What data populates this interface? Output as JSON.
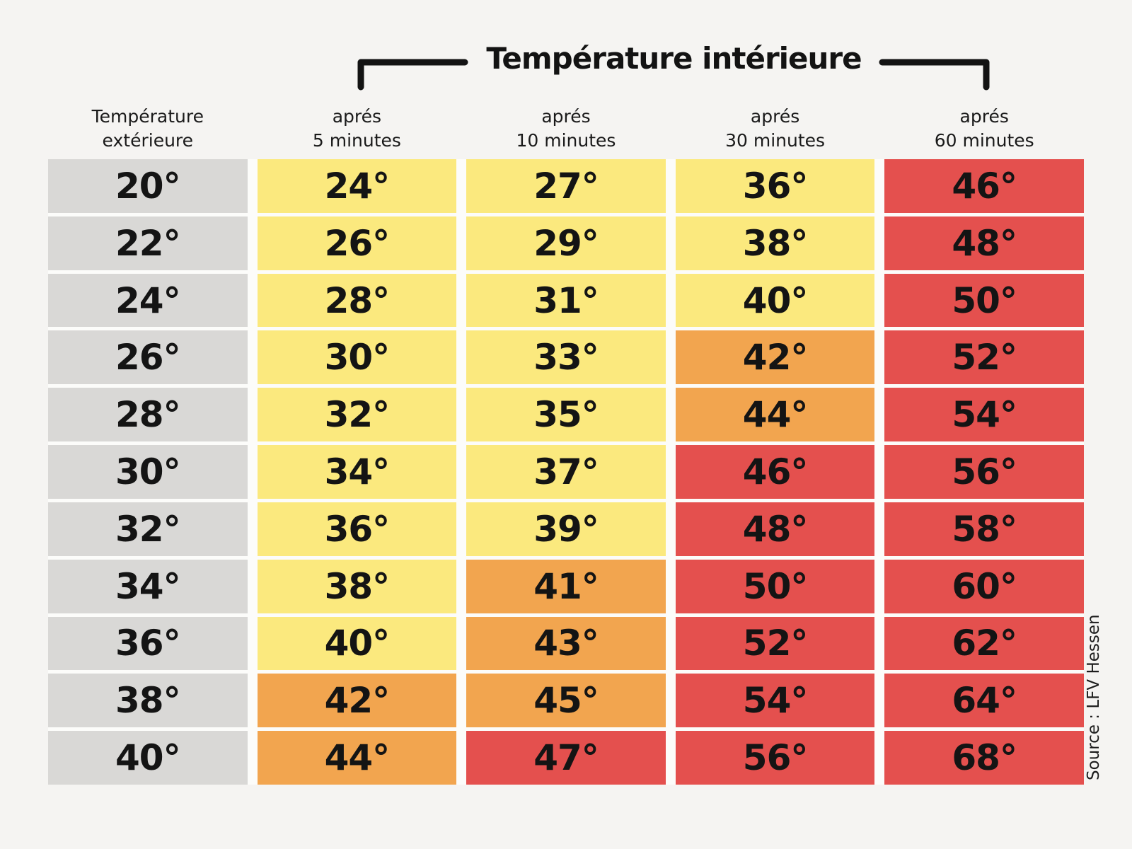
{
  "title": "Température intérieure",
  "source_note": "Source : LFV Hessen",
  "header": {
    "row_label": {
      "line1": "Température",
      "line2": "extérieure"
    },
    "time_labels": [
      {
        "line1": "aprés",
        "line2": "5 minutes"
      },
      {
        "line1": "aprés",
        "line2": "10 minutes"
      },
      {
        "line1": "aprés",
        "line2": "30 minutes"
      },
      {
        "line1": "aprés",
        "line2": "60 minutes"
      }
    ]
  },
  "colors": {
    "background": "#f5f4f2",
    "gap": "#fcfcfa",
    "exterior": "#d9d8d6",
    "warm": "#fbe97e",
    "hot": "#f2a54f",
    "extreme": "#e4504e",
    "text": "#141414",
    "line": "#131313"
  },
  "table": {
    "rows": [
      {
        "exterior": "20°",
        "cells": [
          {
            "value": "24°",
            "level": "warm"
          },
          {
            "value": "27°",
            "level": "warm"
          },
          {
            "value": "36°",
            "level": "warm"
          },
          {
            "value": "46°",
            "level": "extreme"
          }
        ]
      },
      {
        "exterior": "22°",
        "cells": [
          {
            "value": "26°",
            "level": "warm"
          },
          {
            "value": "29°",
            "level": "warm"
          },
          {
            "value": "38°",
            "level": "warm"
          },
          {
            "value": "48°",
            "level": "extreme"
          }
        ]
      },
      {
        "exterior": "24°",
        "cells": [
          {
            "value": "28°",
            "level": "warm"
          },
          {
            "value": "31°",
            "level": "warm"
          },
          {
            "value": "40°",
            "level": "warm"
          },
          {
            "value": "50°",
            "level": "extreme"
          }
        ]
      },
      {
        "exterior": "26°",
        "cells": [
          {
            "value": "30°",
            "level": "warm"
          },
          {
            "value": "33°",
            "level": "warm"
          },
          {
            "value": "42°",
            "level": "hot"
          },
          {
            "value": "52°",
            "level": "extreme"
          }
        ]
      },
      {
        "exterior": "28°",
        "cells": [
          {
            "value": "32°",
            "level": "warm"
          },
          {
            "value": "35°",
            "level": "warm"
          },
          {
            "value": "44°",
            "level": "hot"
          },
          {
            "value": "54°",
            "level": "extreme"
          }
        ]
      },
      {
        "exterior": "30°",
        "cells": [
          {
            "value": "34°",
            "level": "warm"
          },
          {
            "value": "37°",
            "level": "warm"
          },
          {
            "value": "46°",
            "level": "extreme"
          },
          {
            "value": "56°",
            "level": "extreme"
          }
        ]
      },
      {
        "exterior": "32°",
        "cells": [
          {
            "value": "36°",
            "level": "warm"
          },
          {
            "value": "39°",
            "level": "warm"
          },
          {
            "value": "48°",
            "level": "extreme"
          },
          {
            "value": "58°",
            "level": "extreme"
          }
        ]
      },
      {
        "exterior": "34°",
        "cells": [
          {
            "value": "38°",
            "level": "warm"
          },
          {
            "value": "41°",
            "level": "hot"
          },
          {
            "value": "50°",
            "level": "extreme"
          },
          {
            "value": "60°",
            "level": "extreme"
          }
        ]
      },
      {
        "exterior": "36°",
        "cells": [
          {
            "value": "40°",
            "level": "warm"
          },
          {
            "value": "43°",
            "level": "hot"
          },
          {
            "value": "52°",
            "level": "extreme"
          },
          {
            "value": "62°",
            "level": "extreme"
          }
        ]
      },
      {
        "exterior": "38°",
        "cells": [
          {
            "value": "42°",
            "level": "hot"
          },
          {
            "value": "45°",
            "level": "hot"
          },
          {
            "value": "54°",
            "level": "extreme"
          },
          {
            "value": "64°",
            "level": "extreme"
          }
        ]
      },
      {
        "exterior": "40°",
        "cells": [
          {
            "value": "44°",
            "level": "hot"
          },
          {
            "value": "47°",
            "level": "extreme"
          },
          {
            "value": "56°",
            "level": "extreme"
          },
          {
            "value": "68°",
            "level": "extreme"
          }
        ]
      }
    ]
  },
  "chart_data": {
    "type": "table",
    "title": "Température intérieure",
    "row_header": "Température extérieure",
    "columns": [
      "aprés 5 minutes",
      "aprés 10 minutes",
      "aprés 30 minutes",
      "aprés 60 minutes"
    ],
    "exterior_temperatures": [
      20,
      22,
      24,
      26,
      28,
      30,
      32,
      34,
      36,
      38,
      40
    ],
    "series": [
      {
        "name": "aprés 5 minutes",
        "values": [
          24,
          26,
          28,
          30,
          32,
          34,
          36,
          38,
          40,
          42,
          44
        ]
      },
      {
        "name": "aprés 10 minutes",
        "values": [
          27,
          29,
          31,
          33,
          35,
          37,
          39,
          41,
          43,
          45,
          47
        ]
      },
      {
        "name": "aprés 30 minutes",
        "values": [
          36,
          38,
          40,
          42,
          44,
          46,
          48,
          50,
          52,
          54,
          56
        ]
      },
      {
        "name": "aprés 60 minutes",
        "values": [
          46,
          48,
          50,
          52,
          54,
          56,
          58,
          60,
          62,
          64,
          68
        ]
      }
    ],
    "color_levels": {
      "warm": "#fbe97e",
      "hot": "#f2a54f",
      "extreme": "#e4504e",
      "row_header_fill": "#d9d8d6"
    },
    "source": "Source : LFV Hessen"
  }
}
